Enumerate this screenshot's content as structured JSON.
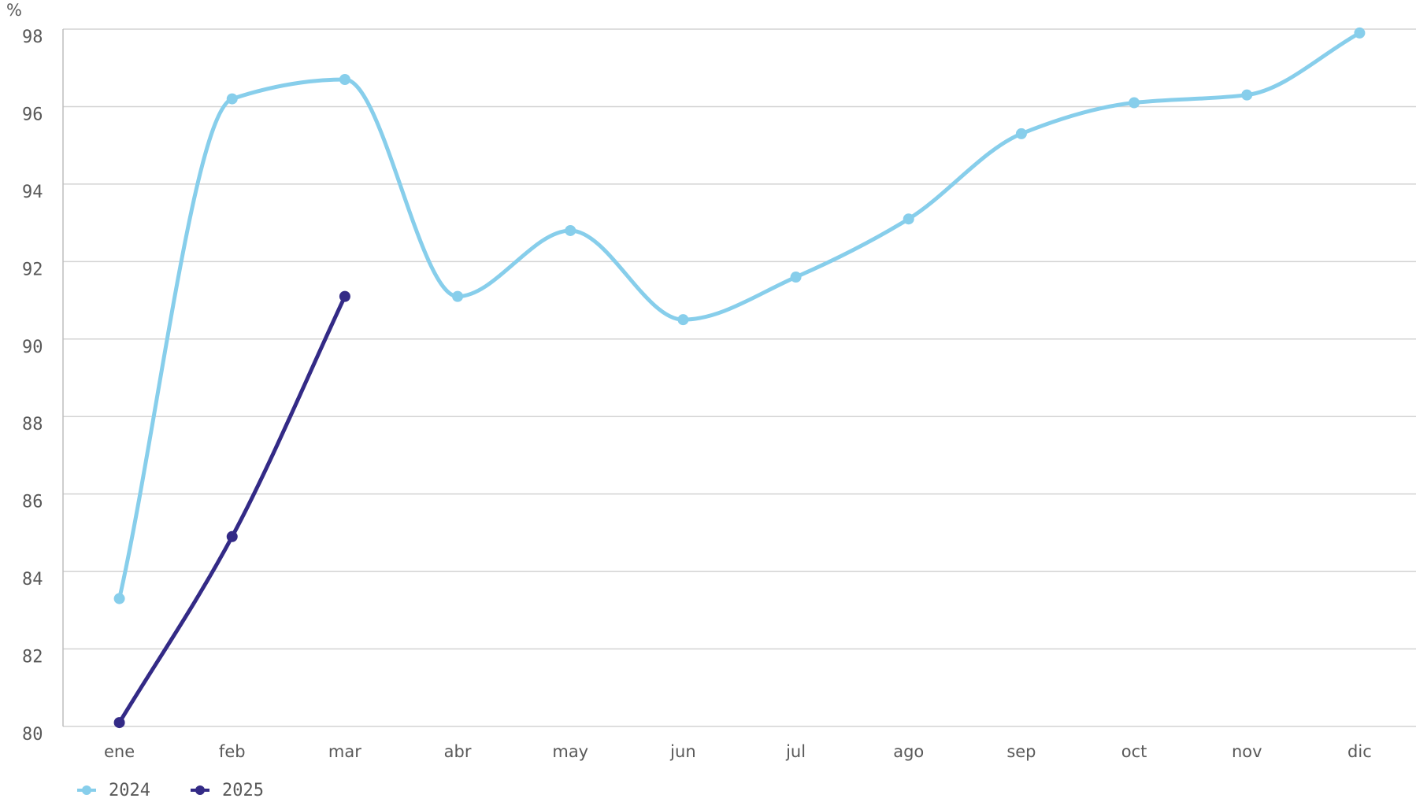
{
  "chart_data": {
    "type": "line",
    "y_label": "%",
    "categories": [
      "ene",
      "feb",
      "mar",
      "abr",
      "may",
      "jun",
      "jul",
      "ago",
      "sep",
      "oct",
      "nov",
      "dic"
    ],
    "series": [
      {
        "name": "2024",
        "color": "#87ceeb",
        "values": [
          83.3,
          96.2,
          96.7,
          91.1,
          92.8,
          90.5,
          91.6,
          93.1,
          95.3,
          96.1,
          96.3,
          97.9
        ]
      },
      {
        "name": "2025",
        "color": "#332a86",
        "values": [
          80.1,
          84.9,
          91.1,
          null,
          null,
          null,
          null,
          null,
          null,
          null,
          null,
          null
        ]
      }
    ],
    "ylim": [
      80,
      98
    ],
    "yticks": [
      80,
      82,
      84,
      86,
      88,
      90,
      92,
      94,
      96,
      98
    ],
    "grid": true,
    "legend": "bottom-left"
  }
}
